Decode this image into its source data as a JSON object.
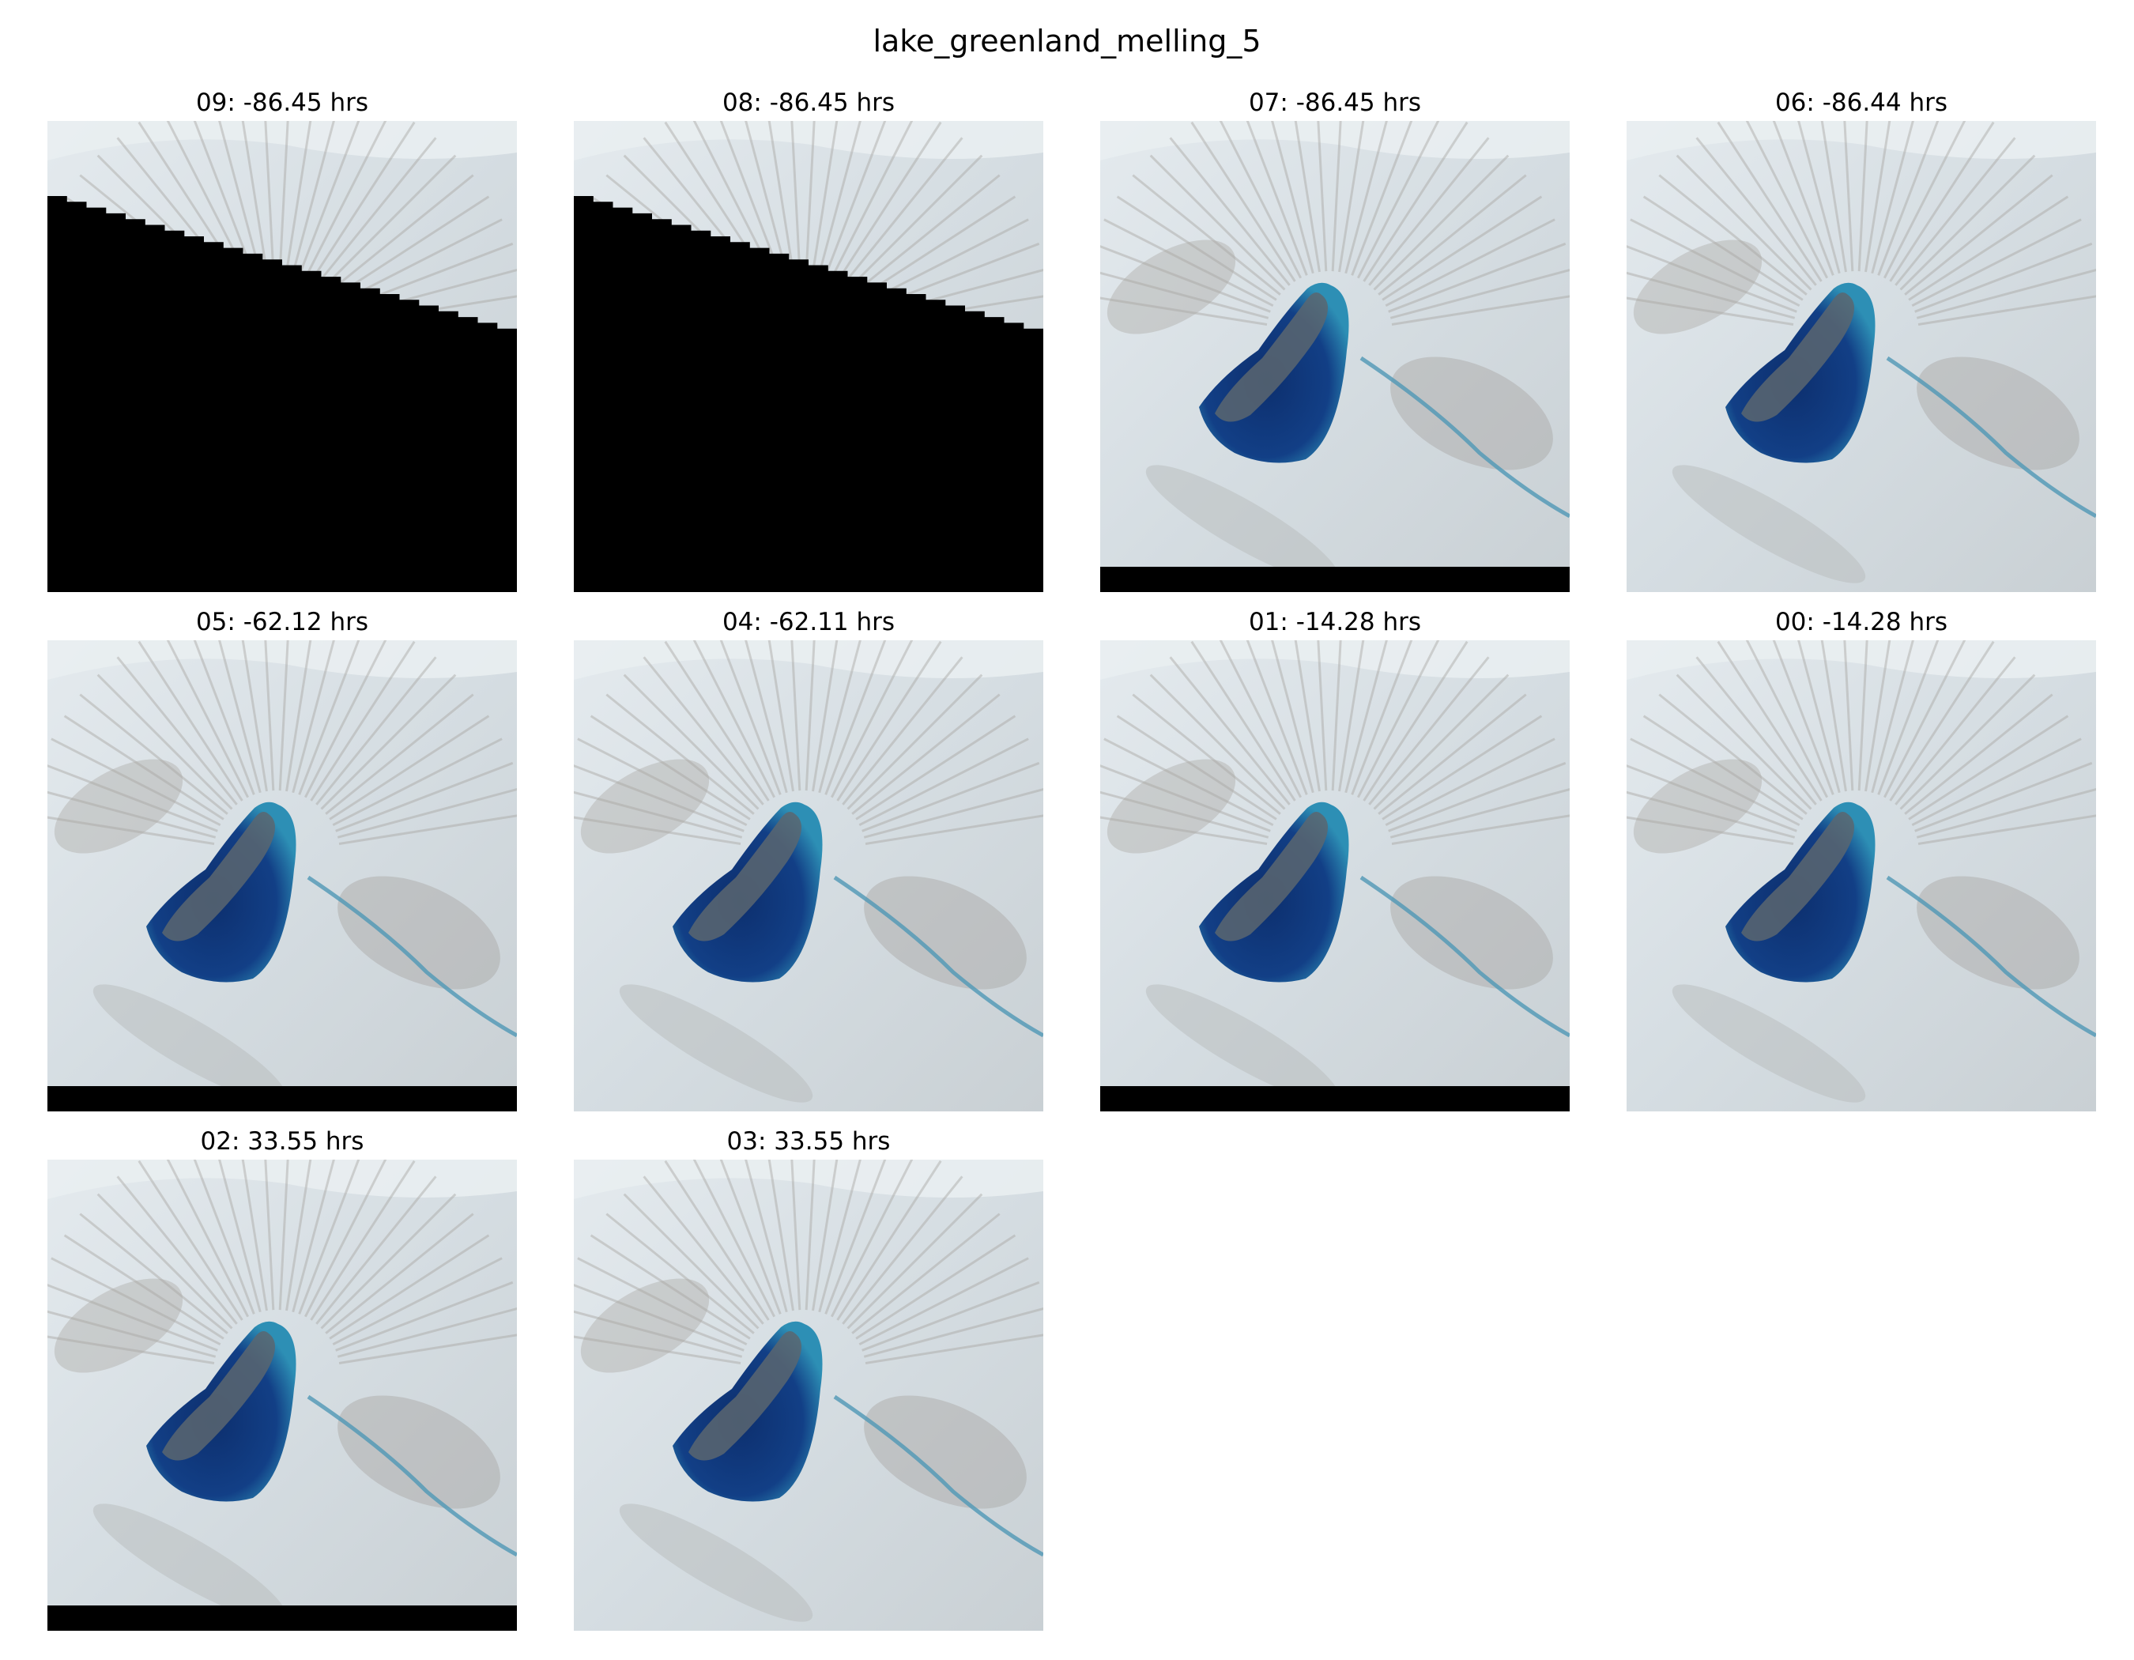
{
  "title": "lake_greenland_melling_5",
  "panels": [
    {
      "label": "09: -86.45 hrs",
      "hours": -86.45,
      "mask": "diagonal"
    },
    {
      "label": "08: -86.45 hrs",
      "hours": -86.45,
      "mask": "diagonal"
    },
    {
      "label": "07: -86.45 hrs",
      "hours": -86.45,
      "mask": "bottom-strip"
    },
    {
      "label": "06: -86.44 hrs",
      "hours": -86.44,
      "mask": "none"
    },
    {
      "label": "05: -62.12 hrs",
      "hours": -62.12,
      "mask": "bottom-strip"
    },
    {
      "label": "04: -62.11 hrs",
      "hours": -62.11,
      "mask": "none"
    },
    {
      "label": "01: -14.28 hrs",
      "hours": -14.28,
      "mask": "bottom-strip"
    },
    {
      "label": "00: -14.28 hrs",
      "hours": -14.28,
      "mask": "none"
    },
    {
      "label": "02: 33.55 hrs",
      "hours": 33.55,
      "mask": "bottom-strip"
    },
    {
      "label": "03: 33.55 hrs",
      "hours": 33.55,
      "mask": "none"
    }
  ],
  "colors": {
    "ice": "#d5dde2",
    "ice_dark": "#a9a7a3",
    "lake_deep": "#0d2f6e",
    "lake_edge": "#2d8fb5",
    "island": "#5b6670",
    "no_data": "#000000"
  }
}
